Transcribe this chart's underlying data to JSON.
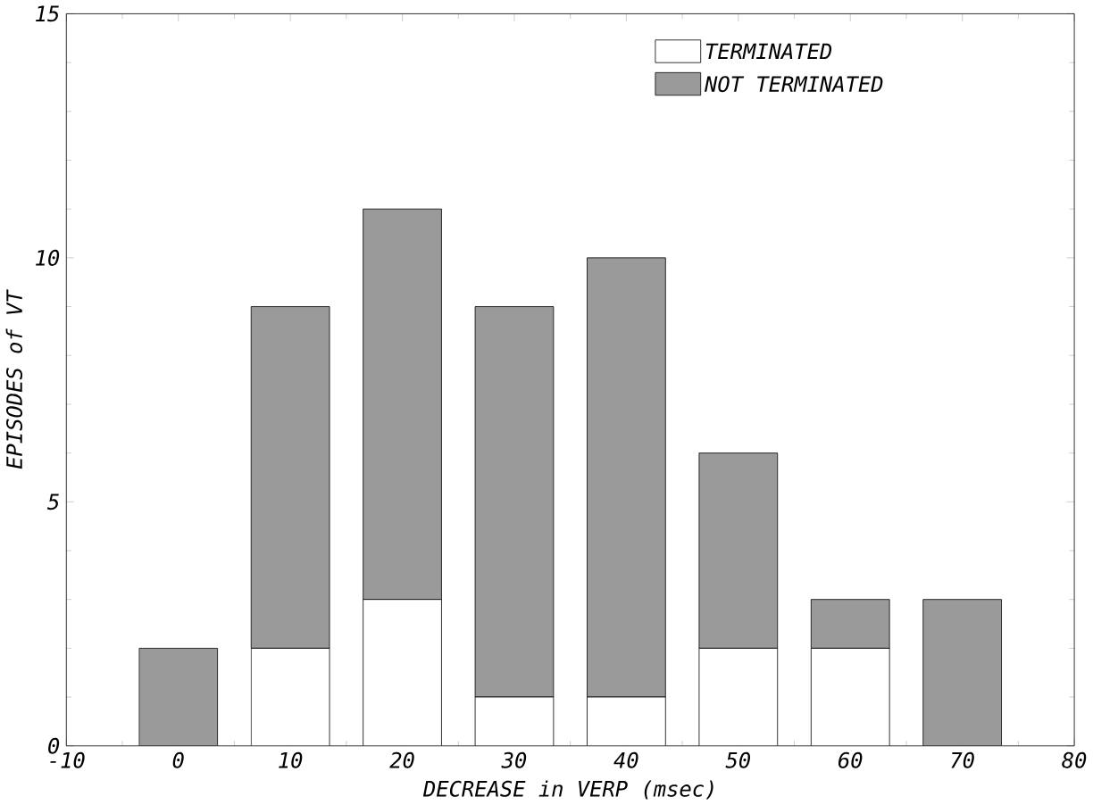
{
  "chart_data": {
    "type": "bar",
    "stacked": true,
    "xlabel": "DECREASE in VERP (msec)",
    "ylabel": "EPISODES of VT",
    "x": [
      0,
      10,
      20,
      30,
      40,
      50,
      60,
      70
    ],
    "series": [
      {
        "name": "TERMINATED",
        "color": "#ffffff",
        "values": [
          0,
          2,
          3,
          1,
          1,
          2,
          2,
          0
        ]
      },
      {
        "name": "NOT TERMINATED",
        "color": "#9a9a9a",
        "values": [
          2,
          7,
          8,
          8,
          9,
          4,
          1,
          3
        ]
      }
    ],
    "xlim": [
      -10,
      80
    ],
    "xticks": [
      -10,
      0,
      10,
      20,
      30,
      40,
      50,
      60,
      70,
      80
    ],
    "ylim": [
      0,
      15
    ],
    "yticks": [
      0,
      5,
      10,
      15
    ],
    "grid": false,
    "legend": "top right"
  }
}
